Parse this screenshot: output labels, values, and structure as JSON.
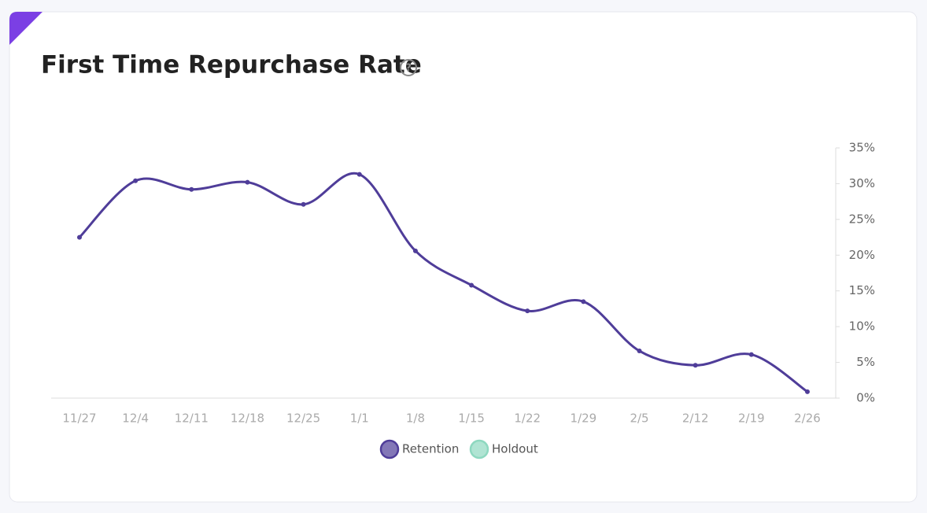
{
  "chart_data": {
    "type": "line",
    "title": "First Time Repurchase Rate",
    "categories": [
      "11/27",
      "12/4",
      "12/11",
      "12/18",
      "12/25",
      "1/1",
      "1/8",
      "1/15",
      "1/22",
      "1/29",
      "2/5",
      "2/12",
      "2/19",
      "2/26"
    ],
    "series": [
      {
        "name": "Retention",
        "color": "#4f3d99",
        "values": [
          22.5,
          30.4,
          29.2,
          30.2,
          27.1,
          31.3,
          20.6,
          15.8,
          12.2,
          13.5,
          6.6,
          4.6,
          6.1,
          0.9
        ]
      },
      {
        "name": "Holdout",
        "color": "#8ed8c0",
        "values": [
          null,
          null,
          null,
          null,
          null,
          null,
          null,
          null,
          null,
          null,
          null,
          null,
          null,
          null
        ]
      }
    ],
    "ylim": [
      0,
      35
    ],
    "yticks": [
      {
        "value": 0,
        "label": "0%"
      },
      {
        "value": 5,
        "label": "5%"
      },
      {
        "value": 10,
        "label": "10%"
      },
      {
        "value": 15,
        "label": "15%"
      },
      {
        "value": 20,
        "label": "20%"
      },
      {
        "value": 25,
        "label": "25%"
      },
      {
        "value": 30,
        "label": "30%"
      },
      {
        "value": 35,
        "label": "35%"
      }
    ]
  }
}
